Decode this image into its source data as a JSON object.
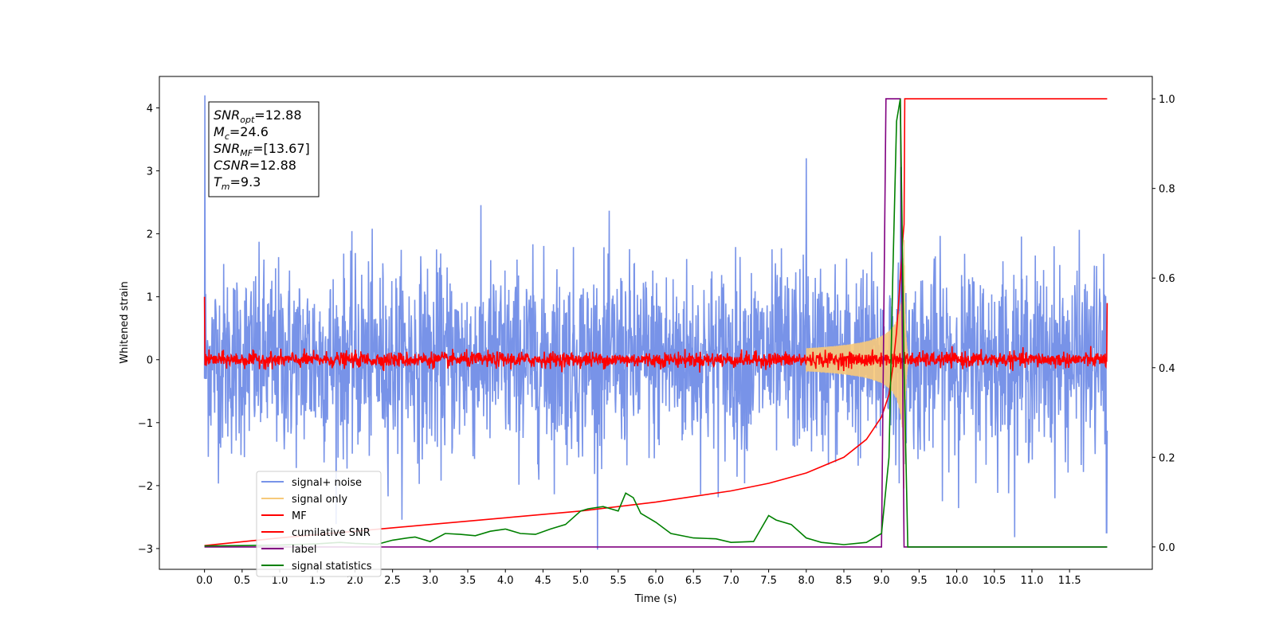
{
  "chart_data": {
    "type": "line",
    "xlabel": "Time (s)",
    "ylabel": "Whitened strain",
    "xlim": [
      -0.6,
      12.6
    ],
    "ylim": [
      -3.33,
      4.5
    ],
    "ylim_right": [
      -0.05,
      1.05
    ],
    "x_ticks": [
      "0.0",
      "0.5",
      "1.0",
      "1.5",
      "2.0",
      "2.5",
      "3.0",
      "3.5",
      "4.0",
      "4.5",
      "5.0",
      "5.5",
      "6.0",
      "6.5",
      "7.0",
      "7.5",
      "8.0",
      "8.5",
      "9.0",
      "9.5",
      "10.0",
      "10.5",
      "11.0",
      "11.5"
    ],
    "y_ticks": [
      "−3",
      "−2",
      "−1",
      "0",
      "1",
      "2",
      "3",
      "4"
    ],
    "y_right_ticks": [
      "0.0",
      "0.2",
      "0.4",
      "0.6",
      "0.8",
      "1.0"
    ],
    "legend_placement": "lower-left",
    "annotation": {
      "lines": [
        {
          "sym": "SNR",
          "sub": "opt",
          "val": "=12.88"
        },
        {
          "sym": "M",
          "sub": "c",
          "val": "=24.6"
        },
        {
          "sym": "SNR",
          "sub": "MF",
          "val": "=[13.67]"
        },
        {
          "sym": "CSNR",
          "sub": "",
          "val": "=12.88"
        },
        {
          "sym": "T",
          "sub": "m",
          "val": "=9.3"
        }
      ]
    },
    "series": [
      {
        "name": "signal+ noise",
        "color": "#7893e8",
        "axis": "left",
        "kind": "noise",
        "x_range": [
          0.0,
          12.0
        ],
        "std": 0.75,
        "peak": 4.2
      },
      {
        "name": "signal only",
        "color": "#f7c97a",
        "axis": "left",
        "kind": "chirp",
        "t_merger": 9.3,
        "peak_amp": 2.1
      },
      {
        "name": "MF",
        "color": "#ff0000",
        "axis": "left",
        "kind": "mf",
        "baseline": 0.0,
        "noise_amp": 0.12
      },
      {
        "name": "cumilative SNR",
        "color": "#ff0000",
        "axis": "right",
        "x": [
          0.0,
          1.0,
          2.0,
          3.0,
          4.0,
          5.0,
          6.0,
          7.0,
          7.5,
          8.0,
          8.5,
          8.8,
          9.0,
          9.1,
          9.15,
          9.2,
          9.25,
          9.28,
          9.3,
          9.31,
          12.0
        ],
        "y": [
          0.003,
          0.02,
          0.035,
          0.05,
          0.065,
          0.08,
          0.1,
          0.125,
          0.142,
          0.165,
          0.2,
          0.24,
          0.29,
          0.34,
          0.4,
          0.48,
          0.6,
          0.68,
          0.72,
          1.0,
          1.0
        ]
      },
      {
        "name": "label",
        "color": "#800080",
        "axis": "right",
        "x": [
          0.0,
          9.0,
          9.06,
          9.25,
          9.3,
          12.0
        ],
        "y": [
          0.0,
          0.0,
          1.0,
          1.0,
          0.0,
          0.0
        ]
      },
      {
        "name": "signal statistics",
        "color": "#008000",
        "axis": "right",
        "x": [
          0.0,
          0.5,
          1.0,
          1.5,
          1.8,
          2.0,
          2.3,
          2.5,
          2.7,
          2.8,
          3.0,
          3.2,
          3.4,
          3.6,
          3.8,
          4.0,
          4.2,
          4.4,
          4.6,
          4.8,
          5.0,
          5.1,
          5.3,
          5.5,
          5.6,
          5.7,
          5.8,
          5.9,
          6.0,
          6.2,
          6.5,
          6.8,
          7.0,
          7.3,
          7.5,
          7.6,
          7.8,
          8.0,
          8.2,
          8.5,
          8.8,
          9.0,
          9.1,
          9.15,
          9.2,
          9.25,
          9.3,
          9.35,
          9.5,
          12.0
        ],
        "y": [
          0.002,
          0.003,
          0.004,
          0.007,
          0.01,
          0.008,
          0.006,
          0.015,
          0.02,
          0.022,
          0.012,
          0.03,
          0.028,
          0.025,
          0.035,
          0.04,
          0.03,
          0.028,
          0.04,
          0.05,
          0.08,
          0.085,
          0.09,
          0.08,
          0.12,
          0.11,
          0.075,
          0.065,
          0.055,
          0.03,
          0.02,
          0.018,
          0.01,
          0.012,
          0.07,
          0.06,
          0.05,
          0.02,
          0.01,
          0.005,
          0.01,
          0.03,
          0.2,
          0.6,
          0.95,
          1.0,
          0.4,
          0.0,
          0.0,
          0.0
        ]
      }
    ]
  }
}
